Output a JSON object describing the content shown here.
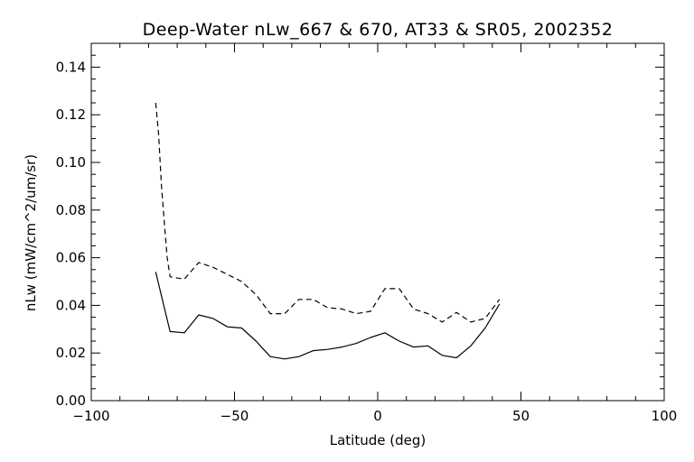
{
  "chart_data": {
    "type": "line",
    "title": "Deep-Water nLw_667 & 670, AT33 & SR05, 2002352",
    "xlabel": "Latitude (deg)",
    "ylabel": "nLw (mW/cm^2/um/sr)",
    "xlim": [
      -100,
      100
    ],
    "ylim": [
      0,
      0.15
    ],
    "x_ticks": [
      -100,
      -50,
      0,
      50,
      100
    ],
    "x_tick_labels": [
      "−100",
      "−50",
      "0",
      "50",
      "100"
    ],
    "y_ticks": [
      0,
      0.02,
      0.04,
      0.06,
      0.08,
      0.1,
      0.12,
      0.14
    ],
    "y_tick_labels": [
      "0.00",
      "0.02",
      "0.04",
      "0.06",
      "0.08",
      "0.10",
      "0.12",
      "0.14"
    ],
    "grid": false,
    "series": [
      {
        "style": "solid",
        "color": "#000000",
        "x": [
          -77.5,
          -72.5,
          -67.5,
          -62.5,
          -57.5,
          -52.5,
          -47.5,
          -42.5,
          -37.5,
          -32.5,
          -27.5,
          -22.5,
          -17.5,
          -12.5,
          -7.5,
          -2.5,
          2.5,
          7.5,
          12.5,
          17.5,
          22.5,
          27.5,
          32.5,
          37.5,
          42.5
        ],
        "y": [
          0.054,
          0.029,
          0.0285,
          0.036,
          0.0345,
          0.031,
          0.0305,
          0.025,
          0.0185,
          0.0175,
          0.0185,
          0.021,
          0.0215,
          0.0225,
          0.024,
          0.0265,
          0.0285,
          0.025,
          0.0225,
          0.023,
          0.019,
          0.018,
          0.023,
          0.0305,
          0.0405
        ]
      },
      {
        "style": "dashed",
        "color": "#000000",
        "x": [
          -77.5,
          -76.5,
          -75.5,
          -74.5,
          -73.5,
          -72.5,
          -67.5,
          -62.5,
          -57.5,
          -52.5,
          -47.5,
          -42.5,
          -37.5,
          -32.5,
          -27.5,
          -22.5,
          -17.5,
          -12.5,
          -7.5,
          -2.5,
          2.5,
          7.5,
          12.5,
          17.5,
          22.5,
          27.5,
          32.5,
          37.5,
          42.5
        ],
        "y": [
          0.125,
          0.112,
          0.09,
          0.075,
          0.06,
          0.052,
          0.051,
          0.058,
          0.056,
          0.053,
          0.05,
          0.0445,
          0.0365,
          0.0365,
          0.0425,
          0.0425,
          0.039,
          0.0385,
          0.0365,
          0.0375,
          0.047,
          0.047,
          0.0385,
          0.0365,
          0.033,
          0.037,
          0.033,
          0.0345,
          0.0425
        ]
      }
    ]
  }
}
